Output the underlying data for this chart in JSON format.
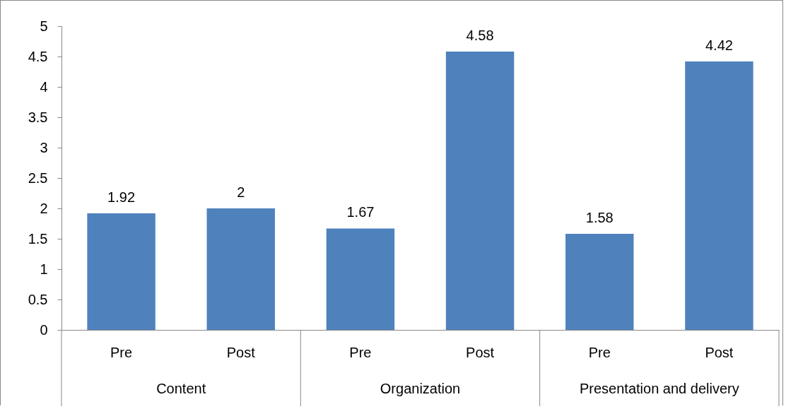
{
  "chart_data": {
    "type": "bar",
    "categories": [
      "Pre",
      "Post",
      "Pre",
      "Post",
      "Pre",
      "Post"
    ],
    "values": [
      1.92,
      2,
      1.67,
      4.58,
      1.58,
      4.42
    ],
    "color": "#4f81bd",
    "ylim": [
      0,
      5
    ],
    "yticks": [
      0,
      0.5,
      1,
      1.5,
      2,
      2.5,
      3,
      3.5,
      4,
      4.5,
      5
    ],
    "grid": false,
    "data_labels": true,
    "annotations": [
      "Content",
      "Organization",
      "Presentation and delivery"
    ]
  }
}
